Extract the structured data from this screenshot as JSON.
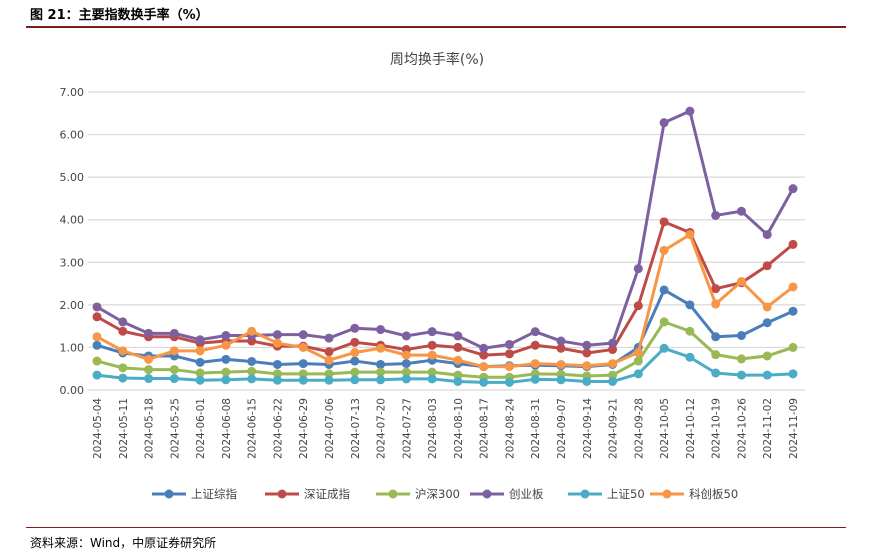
{
  "header": {
    "title": "图 21：主要指数换手率（%）"
  },
  "footer": {
    "source": "资料来源：Wind，中原证券研究所"
  },
  "chart_data": {
    "type": "line",
    "title": "周均换手率(%)",
    "xlabel": "",
    "ylabel": "",
    "ylim": [
      0,
      7
    ],
    "yticks": [
      "0.00",
      "1.00",
      "2.00",
      "3.00",
      "4.00",
      "5.00",
      "6.00",
      "7.00"
    ],
    "grid": true,
    "legend_position": "bottom",
    "categories": [
      "2024-05-04",
      "2024-05-11",
      "2024-05-18",
      "2024-05-25",
      "2024-06-01",
      "2024-06-08",
      "2024-06-15",
      "2024-06-22",
      "2024-06-29",
      "2024-07-06",
      "2024-07-13",
      "2024-07-20",
      "2024-07-27",
      "2024-08-03",
      "2024-08-10",
      "2024-08-17",
      "2024-08-24",
      "2024-08-31",
      "2024-09-07",
      "2024-09-14",
      "2024-09-21",
      "2024-09-28",
      "2024-10-05",
      "2024-10-12",
      "2024-10-19",
      "2024-10-26",
      "2024-11-02",
      "2024-11-09"
    ],
    "series": [
      {
        "name": "上证综指",
        "color": "#4a7ebb",
        "values": [
          1.05,
          0.87,
          0.8,
          0.8,
          0.65,
          0.72,
          0.67,
          0.6,
          0.62,
          0.6,
          0.68,
          0.6,
          0.62,
          0.7,
          0.62,
          0.55,
          0.57,
          0.58,
          0.57,
          0.55,
          0.6,
          1.0,
          2.35,
          2.0,
          1.25,
          1.28,
          1.58,
          1.85
        ]
      },
      {
        "name": "深证成指",
        "color": "#be4b48",
        "values": [
          1.72,
          1.38,
          1.25,
          1.25,
          1.1,
          1.15,
          1.15,
          1.03,
          1.03,
          0.9,
          1.12,
          1.05,
          0.95,
          1.05,
          1.0,
          0.82,
          0.85,
          1.05,
          0.98,
          0.87,
          0.95,
          1.98,
          3.95,
          3.7,
          2.38,
          2.52,
          2.92,
          3.42
        ]
      },
      {
        "name": "沪深300",
        "color": "#98b954",
        "values": [
          0.68,
          0.52,
          0.48,
          0.48,
          0.4,
          0.42,
          0.44,
          0.38,
          0.38,
          0.38,
          0.42,
          0.42,
          0.42,
          0.42,
          0.35,
          0.3,
          0.3,
          0.38,
          0.37,
          0.33,
          0.35,
          0.68,
          1.6,
          1.38,
          0.83,
          0.73,
          0.8,
          1.0
        ]
      },
      {
        "name": "创业板",
        "color": "#7d60a0",
        "values": [
          1.95,
          1.6,
          1.33,
          1.33,
          1.18,
          1.28,
          1.28,
          1.3,
          1.3,
          1.22,
          1.45,
          1.42,
          1.27,
          1.37,
          1.27,
          0.98,
          1.07,
          1.37,
          1.15,
          1.05,
          1.1,
          2.85,
          6.28,
          6.55,
          4.1,
          4.2,
          3.65,
          4.73
        ]
      },
      {
        "name": "上证50",
        "color": "#4bacc6",
        "values": [
          0.35,
          0.28,
          0.27,
          0.27,
          0.23,
          0.24,
          0.26,
          0.23,
          0.23,
          0.23,
          0.24,
          0.24,
          0.26,
          0.26,
          0.2,
          0.18,
          0.18,
          0.25,
          0.24,
          0.2,
          0.2,
          0.38,
          0.98,
          0.77,
          0.4,
          0.35,
          0.35,
          0.38
        ]
      },
      {
        "name": "科创板50",
        "color": "#f79646",
        "values": [
          1.25,
          0.92,
          0.72,
          0.92,
          0.92,
          1.05,
          1.38,
          1.1,
          1.0,
          0.7,
          0.88,
          0.98,
          0.82,
          0.82,
          0.7,
          0.55,
          0.55,
          0.62,
          0.6,
          0.57,
          0.62,
          0.88,
          3.28,
          3.65,
          2.02,
          2.55,
          1.95,
          2.42
        ]
      }
    ]
  }
}
